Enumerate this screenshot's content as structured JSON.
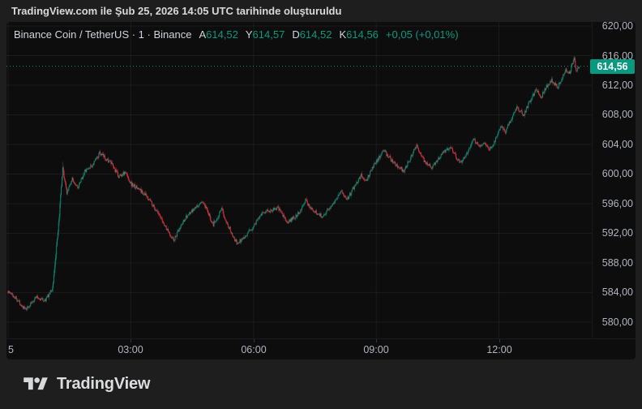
{
  "header": {
    "text": "TradingView.com ile Şub 25, 2026 14:05 UTC tarihinde oluşturuldu"
  },
  "legend": {
    "title": "Binance Coin / TetherUS · 1 · Binance",
    "ohlc": [
      {
        "label": "A",
        "value": "614,52"
      },
      {
        "label": "Y",
        "value": "614,57"
      },
      {
        "label": "D",
        "value": "614,52"
      },
      {
        "label": "K",
        "value": "614,56"
      }
    ],
    "change": "+0,05 (+0,01%)"
  },
  "price_scale": {
    "last_price_label": "614,56"
  },
  "footer": {
    "brand": "TradingView"
  },
  "colors": {
    "up": "#089981",
    "down": "#f23645",
    "accent": "#089981",
    "panel_bg": "#0d0d0d",
    "frame_bg": "#1e1e1e",
    "grid": "rgba(255,255,255,0.06)",
    "axis_text": "#b2b5be",
    "badge_text": "#ffffff"
  },
  "chart_data": {
    "type": "candlestick",
    "title": "Binance Coin / TetherUS",
    "interval_minutes": 1,
    "exchange": "Binance",
    "date": "Şub 25, 2026",
    "last_price": 614.56,
    "open": 614.52,
    "high": 614.57,
    "low": 614.52,
    "close": 614.56,
    "grid": true,
    "y_range": [
      577.8,
      620.55
    ],
    "x_range_min": [
      -2.4,
      856
    ],
    "y_ticks": [
      {
        "v": 620,
        "label": "620,00"
      },
      {
        "v": 616,
        "label": "616,00"
      },
      {
        "v": 612,
        "label": "612,00"
      },
      {
        "v": 608,
        "label": "608,00"
      },
      {
        "v": 604,
        "label": "604,00"
      },
      {
        "v": 600,
        "label": "600,00"
      },
      {
        "v": 596,
        "label": "596,00"
      },
      {
        "v": 592,
        "label": "592,00"
      },
      {
        "v": 588,
        "label": "588,00"
      },
      {
        "v": 584,
        "label": "584,00"
      },
      {
        "v": 580,
        "label": "580,00"
      }
    ],
    "x_ticks": [
      {
        "t": 0,
        "label": "5"
      },
      {
        "t": 180,
        "label": "03:00"
      },
      {
        "t": 360,
        "label": "06:00"
      },
      {
        "t": 540,
        "label": "09:00"
      },
      {
        "t": 720,
        "label": "12:00"
      }
    ],
    "anchors": [
      [
        0,
        584.2
      ],
      [
        12,
        583.3
      ],
      [
        27,
        581.6
      ],
      [
        42,
        583.4
      ],
      [
        55,
        582.9
      ],
      [
        66,
        584.5
      ],
      [
        74,
        592.0
      ],
      [
        81,
        600.7
      ],
      [
        87,
        597.5
      ],
      [
        95,
        599.3
      ],
      [
        104,
        598.2
      ],
      [
        113,
        600.3
      ],
      [
        125,
        601.2
      ],
      [
        135,
        602.8
      ],
      [
        151,
        601.6
      ],
      [
        163,
        599.7
      ],
      [
        173,
        600.2
      ],
      [
        182,
        598.6
      ],
      [
        194,
        597.9
      ],
      [
        209,
        596.5
      ],
      [
        226,
        593.8
      ],
      [
        244,
        591.0
      ],
      [
        260,
        594.0
      ],
      [
        286,
        596.3
      ],
      [
        302,
        593.2
      ],
      [
        314,
        595.2
      ],
      [
        325,
        592.8
      ],
      [
        337,
        590.6
      ],
      [
        358,
        592.5
      ],
      [
        372,
        594.7
      ],
      [
        397,
        595.4
      ],
      [
        411,
        593.4
      ],
      [
        426,
        594.6
      ],
      [
        437,
        596.4
      ],
      [
        449,
        595.0
      ],
      [
        462,
        594.3
      ],
      [
        477,
        596.0
      ],
      [
        489,
        597.7
      ],
      [
        498,
        596.6
      ],
      [
        510,
        598.5
      ],
      [
        519,
        599.9
      ],
      [
        525,
        598.9
      ],
      [
        536,
        601.0
      ],
      [
        552,
        603.2
      ],
      [
        566,
        601.5
      ],
      [
        581,
        600.4
      ],
      [
        590,
        602.0
      ],
      [
        600,
        603.9
      ],
      [
        611,
        601.8
      ],
      [
        623,
        600.9
      ],
      [
        635,
        602.5
      ],
      [
        650,
        603.8
      ],
      [
        658,
        602.3
      ],
      [
        665,
        601.6
      ],
      [
        675,
        603.0
      ],
      [
        683,
        604.8
      ],
      [
        691,
        603.9
      ],
      [
        700,
        604.1
      ],
      [
        707,
        603.4
      ],
      [
        712,
        603.8
      ],
      [
        718,
        605.2
      ],
      [
        724,
        606.4
      ],
      [
        730,
        605.6
      ],
      [
        739,
        607.5
      ],
      [
        747,
        609.0
      ],
      [
        757,
        607.9
      ],
      [
        765,
        609.6
      ],
      [
        775,
        611.4
      ],
      [
        783,
        610.4
      ],
      [
        790,
        611.8
      ],
      [
        798,
        612.6
      ],
      [
        807,
        611.7
      ],
      [
        813,
        613.0
      ],
      [
        819,
        614.2
      ],
      [
        825,
        613.6
      ],
      [
        831,
        615.9
      ],
      [
        834,
        614.0
      ],
      [
        838,
        614.56
      ]
    ]
  }
}
